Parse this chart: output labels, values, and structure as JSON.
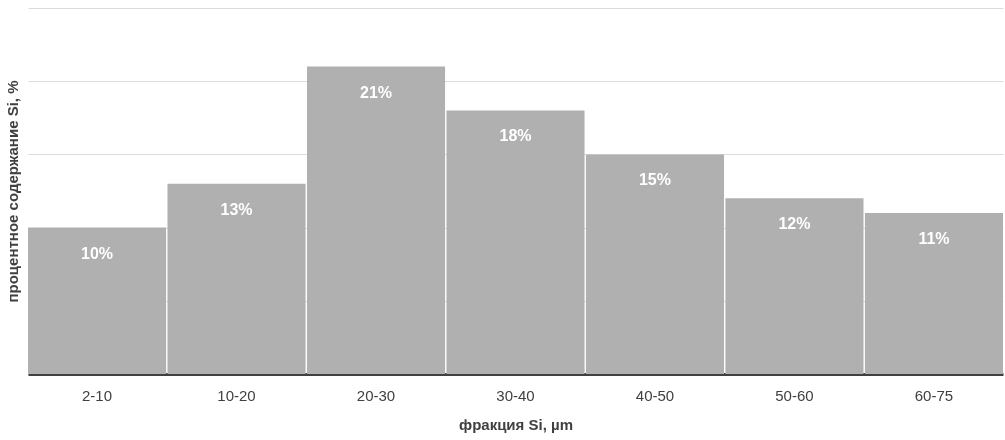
{
  "chart_data": {
    "type": "bar",
    "xlabel": "фракция Si, µm",
    "ylabel": "процентное содержание Si, %",
    "categories": [
      "2-10",
      "10-20",
      "20-30",
      "30-40",
      "40-50",
      "50-60",
      "60-75"
    ],
    "values": [
      10,
      13,
      21,
      18,
      15,
      12,
      11
    ],
    "value_labels": [
      "10%",
      "13%",
      "21%",
      "18%",
      "15%",
      "12%",
      "11%"
    ],
    "color": "#b0b0b0",
    "ylim": [
      0,
      25
    ],
    "yticks": [
      {
        "value": 0,
        "label": null
      },
      {
        "value": 5,
        "label": null
      },
      {
        "value": 10,
        "label": null
      },
      {
        "value": 15,
        "label": null
      },
      {
        "value": 20,
        "label": null
      },
      {
        "value": 25,
        "label": null
      }
    ],
    "tick_labels": "x",
    "grid": "y"
  }
}
